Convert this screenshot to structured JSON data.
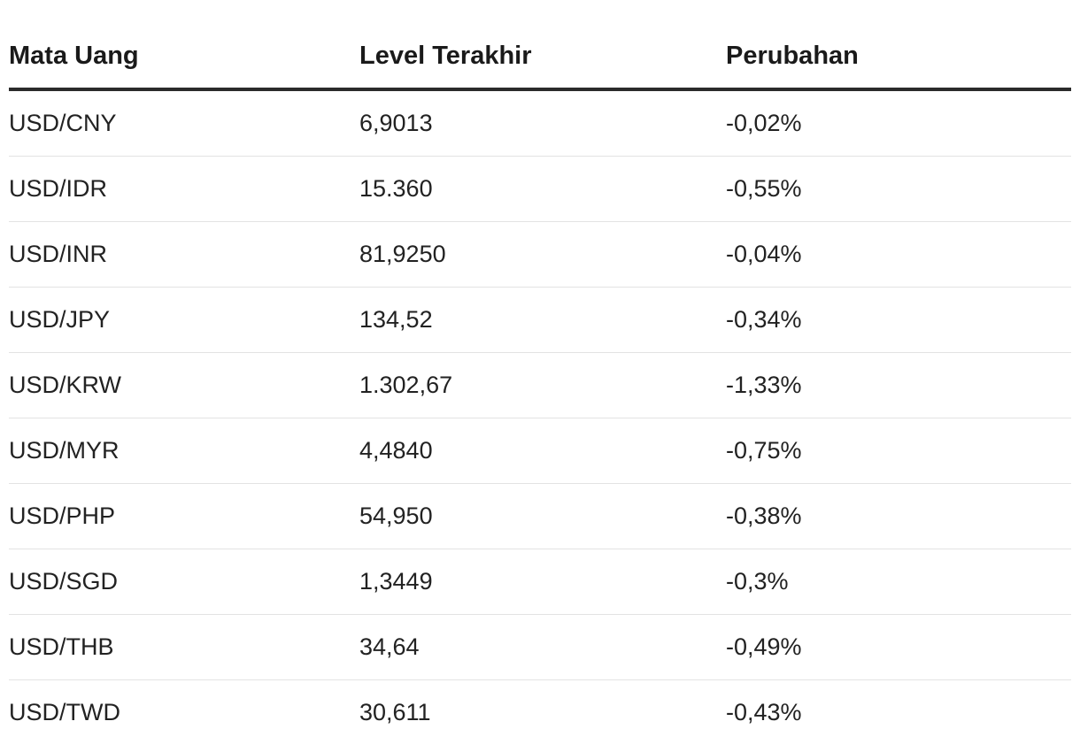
{
  "table": {
    "headers": [
      "Mata Uang",
      "Level Terakhir",
      "Perubahan"
    ],
    "rows": [
      [
        "USD/CNY",
        "6,9013",
        "-0,02%"
      ],
      [
        "USD/IDR",
        "15.360",
        "-0,55%"
      ],
      [
        "USD/INR",
        "81,9250",
        "-0,04%"
      ],
      [
        "USD/JPY",
        "134,52",
        "-0,34%"
      ],
      [
        "USD/KRW",
        "1.302,67",
        "-1,33%"
      ],
      [
        "USD/MYR",
        "4,4840",
        "-0,75%"
      ],
      [
        "USD/PHP",
        "54,950",
        "-0,38%"
      ],
      [
        "USD/SGD",
        "1,3449",
        "-0,3%"
      ],
      [
        "USD/THB",
        "34,64",
        "-0,49%"
      ],
      [
        "USD/TWD",
        "30,611",
        "-0,43%"
      ]
    ]
  }
}
